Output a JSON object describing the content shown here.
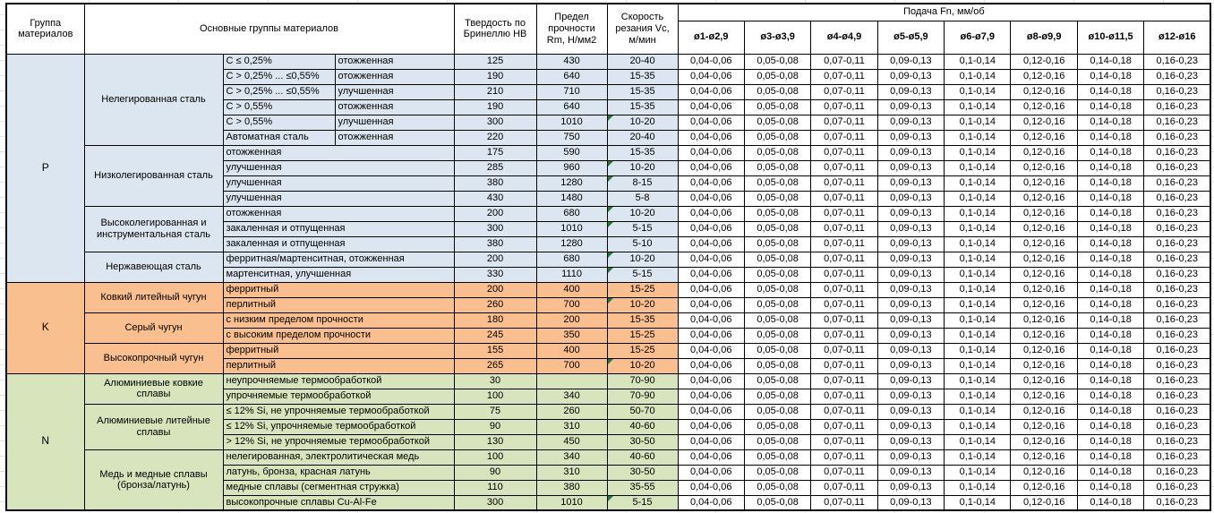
{
  "header": {
    "col_group": "Группа материалов",
    "col_main": "Основные группы материалов",
    "col_hb": "Твердость по Бринеллю HB",
    "col_rm": "Предел прочности Rm, Н/мм2",
    "col_vc": "Скорость резания Vc, м/мин",
    "feed_title": "Подача Fn, мм/об",
    "feed_cols": [
      "ø1-ø2,9",
      "ø3-ø3,9",
      "ø4-ø4,9",
      "ø5-ø5,9",
      "ø6-ø7,9",
      "ø8-ø9,9",
      "ø10-ø11,5",
      "ø12-ø16"
    ]
  },
  "feed_values": [
    "0,04-0,06",
    "0,05-0,08",
    "0,07-0,11",
    "0,09-0,13",
    "0,1-0,14",
    "0,12-0,16",
    "0,14-0,18",
    "0,16-0,23"
  ],
  "colors": {
    "group_P": "#dce6f1",
    "group_K": "#fabf8f",
    "group_N": "#d7e4bc",
    "indicator": "#1f7a3c",
    "border": "#000000",
    "gridline": "#dfe4ec"
  },
  "groups": [
    {
      "code": "P",
      "color": "#dce6f1",
      "families": [
        {
          "name": "Нелегированная сталь",
          "rows": [
            {
              "cells": [
                "C ≤ 0,25%",
                "отожженная"
              ],
              "hb": "125",
              "rm": "430",
              "vc": "20-40",
              "flag": false
            },
            {
              "cells": [
                "C > 0,25% ... ≤0,55%",
                "отожженная"
              ],
              "hb": "190",
              "rm": "640",
              "vc": "15-35",
              "flag": false
            },
            {
              "cells": [
                "C > 0,25% ... ≤0,55%",
                "улучшенная"
              ],
              "hb": "210",
              "rm": "710",
              "vc": "15-35",
              "flag": false
            },
            {
              "cells": [
                "C > 0,55%",
                "отожженная"
              ],
              "hb": "190",
              "rm": "640",
              "vc": "15-35",
              "flag": false
            },
            {
              "cells": [
                "C > 0,55%",
                "улучшенная"
              ],
              "hb": "300",
              "rm": "1010",
              "vc": "10-20",
              "flag": true
            },
            {
              "cells": [
                "Автоматная сталь",
                "отожженная"
              ],
              "hb": "220",
              "rm": "750",
              "vc": "20-40",
              "flag": false
            }
          ]
        },
        {
          "name": "Низколегированная сталь",
          "rows": [
            {
              "cells": [
                "отожженная"
              ],
              "hb": "175",
              "rm": "590",
              "vc": "15-35",
              "flag": false
            },
            {
              "cells": [
                "улучшенная"
              ],
              "hb": "285",
              "rm": "960",
              "vc": "10-20",
              "flag": true
            },
            {
              "cells": [
                "улучшенная"
              ],
              "hb": "380",
              "rm": "1280",
              "vc": "8-15",
              "flag": true
            },
            {
              "cells": [
                "улучшенная"
              ],
              "hb": "430",
              "rm": "1480",
              "vc": "5-8",
              "flag": false
            }
          ]
        },
        {
          "name": "Высоколегированная и инструментальная сталь",
          "rows": [
            {
              "cells": [
                "отожженная"
              ],
              "hb": "200",
              "rm": "680",
              "vc": "10-20",
              "flag": true
            },
            {
              "cells": [
                "закаленная и отпущенная"
              ],
              "hb": "300",
              "rm": "1010",
              "vc": "5-15",
              "flag": true
            },
            {
              "cells": [
                "закаленная и отпущенная"
              ],
              "hb": "380",
              "rm": "1280",
              "vc": "5-10",
              "flag": false
            }
          ]
        },
        {
          "name": "Нержавеющая сталь",
          "rows": [
            {
              "cells": [
                "ферритная/мартенситная, отожженная"
              ],
              "hb": "200",
              "rm": "680",
              "vc": "10-20",
              "flag": true
            },
            {
              "cells": [
                "мартенситная, улучшенная"
              ],
              "hb": "330",
              "rm": "1110",
              "vc": "5-15",
              "flag": true
            }
          ]
        }
      ]
    },
    {
      "code": "K",
      "color": "#fabf8f",
      "families": [
        {
          "name": "Ковкий литейный чугун",
          "rows": [
            {
              "cells": [
                "ферритный"
              ],
              "hb": "200",
              "rm": "400",
              "vc": "15-25",
              "flag": false
            },
            {
              "cells": [
                "перлитный"
              ],
              "hb": "260",
              "rm": "700",
              "vc": "10-20",
              "flag": true
            }
          ]
        },
        {
          "name": "Серый чугун",
          "rows": [
            {
              "cells": [
                "с низким пределом прочности"
              ],
              "hb": "180",
              "rm": "200",
              "vc": "15-35",
              "flag": false
            },
            {
              "cells": [
                "с высоким пределом прочности"
              ],
              "hb": "245",
              "rm": "350",
              "vc": "15-25",
              "flag": false
            }
          ]
        },
        {
          "name": "Высокопрочный чугун",
          "rows": [
            {
              "cells": [
                "ферритный"
              ],
              "hb": "155",
              "rm": "400",
              "vc": "15-25",
              "flag": false
            },
            {
              "cells": [
                "перлитный"
              ],
              "hb": "265",
              "rm": "700",
              "vc": "10-20",
              "flag": true
            }
          ]
        }
      ]
    },
    {
      "code": "N",
      "color": "#d7e4bc",
      "families": [
        {
          "name": "Алюминиевые ковкие сплавы",
          "rows": [
            {
              "cells": [
                "неупрочняемые термообработкой"
              ],
              "hb": "30",
              "rm": "",
              "vc": "70-90",
              "flag": false
            },
            {
              "cells": [
                "упрочняемые термообработкой"
              ],
              "hb": "100",
              "rm": "340",
              "vc": "70-90",
              "flag": false
            }
          ]
        },
        {
          "name": "Алюминиевые литейные сплавы",
          "rows": [
            {
              "cells": [
                "≤ 12% Si, не упрочняемые термообработкой"
              ],
              "hb": "75",
              "rm": "260",
              "vc": "50-70",
              "flag": false
            },
            {
              "cells": [
                "≤ 12% Si, упрочняемые термообработкой"
              ],
              "hb": "90",
              "rm": "310",
              "vc": "40-60",
              "flag": false
            },
            {
              "cells": [
                "> 12% Si, не упрочняемые термообработкой"
              ],
              "hb": "130",
              "rm": "450",
              "vc": "30-50",
              "flag": false
            }
          ]
        },
        {
          "name": "Медь и медные сплавы (бронза/латунь)",
          "rows": [
            {
              "cells": [
                "нелегированная, электролитическая медь"
              ],
              "hb": "100",
              "rm": "340",
              "vc": "40-60",
              "flag": false
            },
            {
              "cells": [
                "латунь, бронза, красная латунь"
              ],
              "hb": "90",
              "rm": "310",
              "vc": "30-50",
              "flag": false
            },
            {
              "cells": [
                "медные сплавы (сегментная стружка)"
              ],
              "hb": "110",
              "rm": "380",
              "vc": "35-55",
              "flag": false
            },
            {
              "cells": [
                "высокопрочные сплавы Cu-Al-Fe"
              ],
              "hb": "300",
              "rm": "1010",
              "vc": "5-15",
              "flag": true
            }
          ]
        }
      ]
    }
  ]
}
